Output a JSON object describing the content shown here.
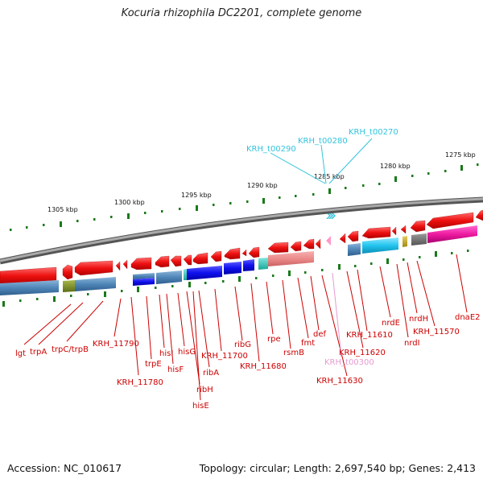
{
  "title": "Kocuria rhizophila DC2201, complete genome",
  "footer": {
    "accession": "Accession: NC_010617",
    "summary": "Topology: circular; Length: 2,697,540 bp; Genes: 2,413"
  },
  "scale_labels": [
    "1305 kbp",
    "1300 kbp",
    "1295 kbp",
    "1290 kbp",
    "1285 kbp",
    "1280 kbp",
    "1275 kbp"
  ],
  "gene_labels": [
    "lgt",
    "trpA",
    "trpC/trpB",
    "KRH_11790",
    "KRH_11780",
    "trpE",
    "hisI",
    "hisF",
    "hisG",
    "ribH",
    "hisE",
    "ribA",
    "KRH_11700",
    "ribG",
    "KRH_11680",
    "rpe",
    "rsmB",
    "fmt",
    "def",
    "KRH_t00300",
    "KRH_11630",
    "KRH_11620",
    "KRH_11610",
    "nrdE",
    "nrdH",
    "nrdI",
    "KRH_11570",
    "dnaE2"
  ],
  "trna_labels": [
    "KRH_t00290",
    "KRH_t00280",
    "KRH_t00270"
  ],
  "colors": {
    "backbone": "#888888",
    "forward_gene": "#ee1111",
    "rna": "#ff99cc",
    "label_red": "#cc0000",
    "label_cyan": "#33c3dc",
    "label_pink": "#e69ad0",
    "tick_green": "#1a7a1a"
  }
}
